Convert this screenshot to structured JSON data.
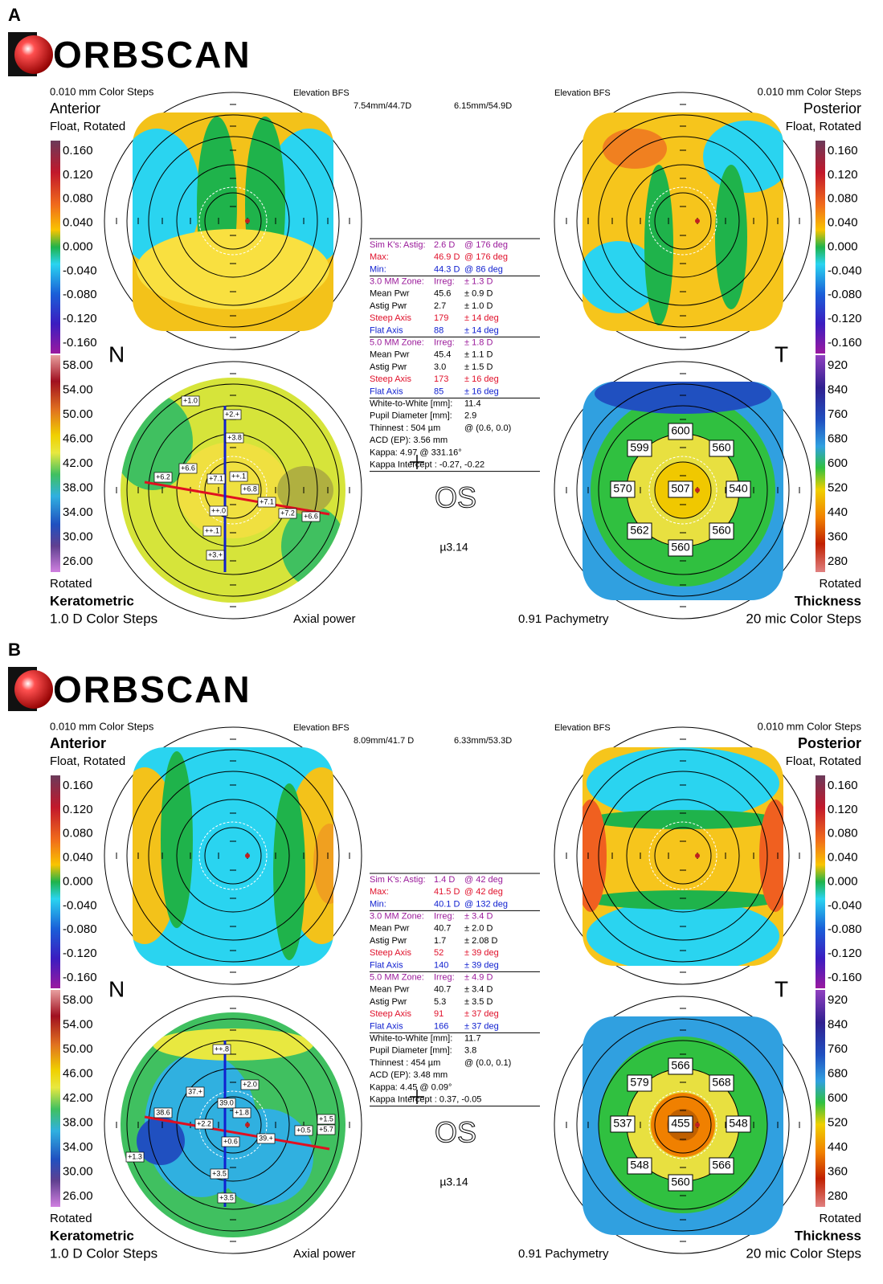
{
  "common": {
    "logo": "ORBSCAN",
    "color_steps": "0.010 mm Color Steps",
    "anterior": "Anterior",
    "posterior": "Posterior",
    "float_rotated": "Float, Rotated",
    "elevation_bfs": "Elevation BFS",
    "nasal": "N",
    "temporal": "T",
    "rotated": "Rotated",
    "keratometric": "Keratometric",
    "kerato_steps": "1.0 D Color Steps",
    "axial_power": "Axial power",
    "pachymetry": "0.91 Pachymetry",
    "thickness": "Thickness",
    "thickness_steps": "20 mic Color Steps",
    "eye": "OS",
    "version": "µ3.14",
    "elevation_scale": [
      "0.160",
      "0.120",
      "0.080",
      "0.040",
      "0.000",
      "-0.040",
      "-0.080",
      "-0.120",
      "-0.160"
    ],
    "kerato_scale": [
      "58.00",
      "54.00",
      "50.00",
      "46.00",
      "42.00",
      "38.00",
      "34.00",
      "30.00",
      "26.00"
    ],
    "thickness_scale": [
      "920",
      "840",
      "760",
      "680",
      "600",
      "520",
      "440",
      "360",
      "280"
    ]
  },
  "panels": [
    {
      "label": "A",
      "bfs_anterior": "7.54mm/44.7D",
      "bfs_posterior": "6.15mm/54.9D",
      "info": [
        {
          "cells": [
            "Sim K's:",
            "Astig:",
            "2.6 D",
            "@ 176 deg"
          ],
          "color": "#9a1a9a"
        },
        {
          "cells": [
            "Max:",
            "46.9 D",
            "@ 176 deg"
          ],
          "color": "#e0102a"
        },
        {
          "cells": [
            "Min:",
            "44.3 D",
            "@ 86 deg"
          ],
          "color": "#1020d0"
        },
        {
          "cells": [
            "3.0 MM Zone:",
            "Irreg:",
            "± 1.3 D"
          ],
          "color": "#9a1a9a"
        },
        {
          "cells": [
            "Mean Pwr",
            "45.6",
            "± 0.9 D"
          ],
          "color": "#000000"
        },
        {
          "cells": [
            "Astig Pwr",
            "2.7",
            "± 1.0 D"
          ],
          "color": "#000000"
        },
        {
          "cells": [
            "Steep Axis",
            "179",
            "± 14 deg"
          ],
          "color": "#e0102a"
        },
        {
          "cells": [
            "Flat Axis",
            "88",
            "± 14 deg"
          ],
          "color": "#1020d0"
        },
        {
          "cells": [
            "5.0 MM Zone:",
            "Irreg:",
            "± 1.8 D"
          ],
          "color": "#9a1a9a"
        },
        {
          "cells": [
            "Mean Pwr",
            "45.4",
            "± 1.1 D"
          ],
          "color": "#000000"
        },
        {
          "cells": [
            "Astig Pwr",
            "3.0",
            "± 1.5 D"
          ],
          "color": "#000000"
        },
        {
          "cells": [
            "Steep Axis",
            "173",
            "± 16 deg"
          ],
          "color": "#e0102a"
        },
        {
          "cells": [
            "Flat Axis",
            "85",
            "± 16 deg"
          ],
          "color": "#1020d0"
        },
        {
          "cells": [
            "White-to-White [mm]:",
            "11.4"
          ],
          "color": "#000000"
        },
        {
          "cells": [
            "Pupil Diameter [mm]:",
            "2.9"
          ],
          "color": "#000000"
        },
        {
          "cells": [
            "Thinnest : 504 µm",
            "@ (0.6, 0.0)"
          ],
          "color": "#000000"
        },
        {
          "cells": [
            "ACD (EP): 3.56 mm"
          ],
          "color": "#000000"
        },
        {
          "cells": [
            "Kappa: 4.97 @ 331.16°"
          ],
          "color": "#000000"
        },
        {
          "cells": [
            "Kappa Intercept : -0.27, -0.22"
          ],
          "color": "#000000"
        }
      ],
      "thickness_values": [
        "600",
        "599",
        "560",
        "570",
        "507",
        "540",
        "562",
        "560",
        "560"
      ],
      "kerato_labels": [
        "+1.0",
        "+2.+",
        "+3.8",
        "+6.6",
        "+6.2",
        "+7.1",
        "++.1",
        "+6.8",
        "+7.1",
        "+7.2",
        "+6.6",
        "++.0",
        "++.1",
        "+3.+"
      ]
    },
    {
      "label": "B",
      "bfs_anterior": "8.09mm/41.7 D",
      "bfs_posterior": "6.33mm/53.3D",
      "info": [
        {
          "cells": [
            "Sim K's:",
            "Astig:",
            "1.4 D",
            "@ 42 deg"
          ],
          "color": "#9a1a9a"
        },
        {
          "cells": [
            "Max:",
            "41.5 D",
            "@ 42 deg"
          ],
          "color": "#e0102a"
        },
        {
          "cells": [
            "Min:",
            "40.1 D",
            "@ 132 deg"
          ],
          "color": "#1020d0"
        },
        {
          "cells": [
            "3.0 MM Zone:",
            "Irreg:",
            "± 3.4 D"
          ],
          "color": "#9a1a9a"
        },
        {
          "cells": [
            "Mean Pwr",
            "40.7",
            "± 2.0 D"
          ],
          "color": "#000000"
        },
        {
          "cells": [
            "Astig Pwr",
            "1.7",
            "± 2.08 D"
          ],
          "color": "#000000"
        },
        {
          "cells": [
            "Steep Axis",
            "52",
            "± 39 deg"
          ],
          "color": "#e0102a"
        },
        {
          "cells": [
            "Flat Axis",
            "140",
            "± 39 deg"
          ],
          "color": "#1020d0"
        },
        {
          "cells": [
            "5.0 MM Zone:",
            "Irreg:",
            "± 4.9 D"
          ],
          "color": "#9a1a9a"
        },
        {
          "cells": [
            "Mean Pwr",
            "40.7",
            "± 3.4 D"
          ],
          "color": "#000000"
        },
        {
          "cells": [
            "Astig Pwr",
            "5.3",
            "± 3.5 D"
          ],
          "color": "#000000"
        },
        {
          "cells": [
            "Steep Axis",
            "91",
            "± 37 deg"
          ],
          "color": "#e0102a"
        },
        {
          "cells": [
            "Flat Axis",
            "166",
            "± 37 deg"
          ],
          "color": "#1020d0"
        },
        {
          "cells": [
            "White-to-White [mm]:",
            "11.7"
          ],
          "color": "#000000"
        },
        {
          "cells": [
            "Pupil Diameter [mm]:",
            "3.8"
          ],
          "color": "#000000"
        },
        {
          "cells": [
            "Thinnest : 454 µm",
            "@ (0.0, 0.1)"
          ],
          "color": "#000000"
        },
        {
          "cells": [
            "ACD (EP): 3.48 mm"
          ],
          "color": "#000000"
        },
        {
          "cells": [
            "Kappa: 4.45 @ 0.09°"
          ],
          "color": "#000000"
        },
        {
          "cells": [
            "Kappa Intercept : 0.37, -0.05"
          ],
          "color": "#000000"
        }
      ],
      "thickness_values": [
        "566",
        "579",
        "568",
        "537",
        "455",
        "548",
        "548",
        "566",
        "560"
      ],
      "kerato_labels": [
        "++.8",
        "+2.0",
        "37.+",
        "39.0",
        "+1.8",
        "38.6",
        "+2.2",
        "+0.6",
        "39.+",
        "+0.5",
        "+1.5",
        "+5.7",
        "+1.3",
        "+3.5",
        "+3.5"
      ]
    }
  ]
}
